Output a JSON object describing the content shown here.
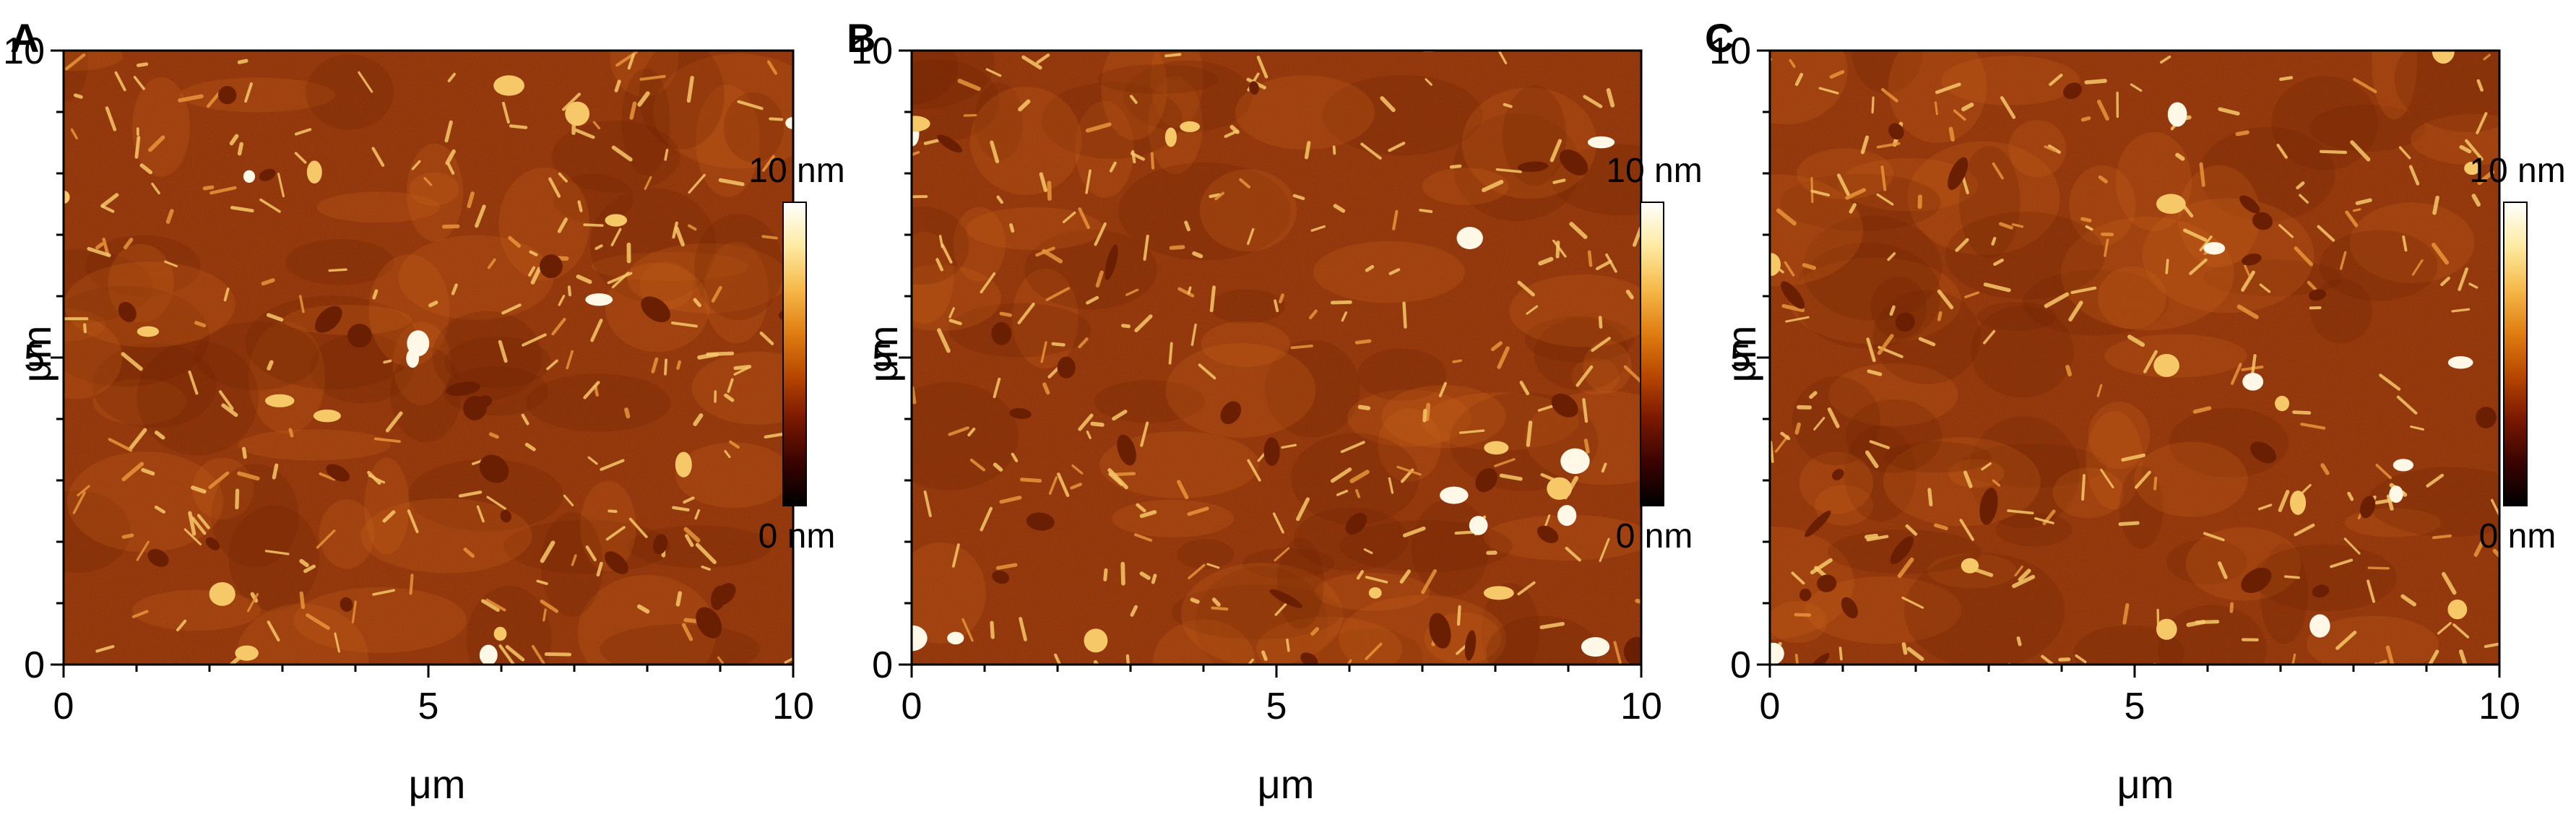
{
  "figure": {
    "colorbar_colors": [
      "#000000",
      "#3a0300",
      "#7a1800",
      "#b84700",
      "#e07f12",
      "#f7b94a",
      "#fdeba2",
      "#ffffff"
    ],
    "image_colors": {
      "base": "#a8420c",
      "light": "#d06a1a",
      "dark": "#6a1e02",
      "bright": "#f7c868",
      "white": "#fff8e6"
    },
    "panels": [
      {
        "letter": "A",
        "x_ticks": [
          "0",
          "5",
          "10"
        ],
        "y_ticks": [
          "0",
          "5",
          "10"
        ],
        "xlabel": "μm",
        "ylabel": "μm",
        "colorbar": {
          "max_label": "10 nm",
          "min_label": "0 nm"
        }
      },
      {
        "letter": "B",
        "x_ticks": [
          "0",
          "5",
          "10"
        ],
        "y_ticks": [
          "0",
          "5",
          "10"
        ],
        "xlabel": "μm",
        "ylabel": "μm",
        "colorbar": {
          "max_label": "10 nm",
          "min_label": "0 nm"
        }
      },
      {
        "letter": "C",
        "x_ticks": [
          "0",
          "5",
          "10"
        ],
        "y_ticks": [
          "0",
          "5",
          "10"
        ],
        "xlabel": "μm",
        "ylabel": "μm",
        "colorbar": {
          "max_label": "10 nm",
          "min_label": "0 nm"
        }
      }
    ]
  }
}
